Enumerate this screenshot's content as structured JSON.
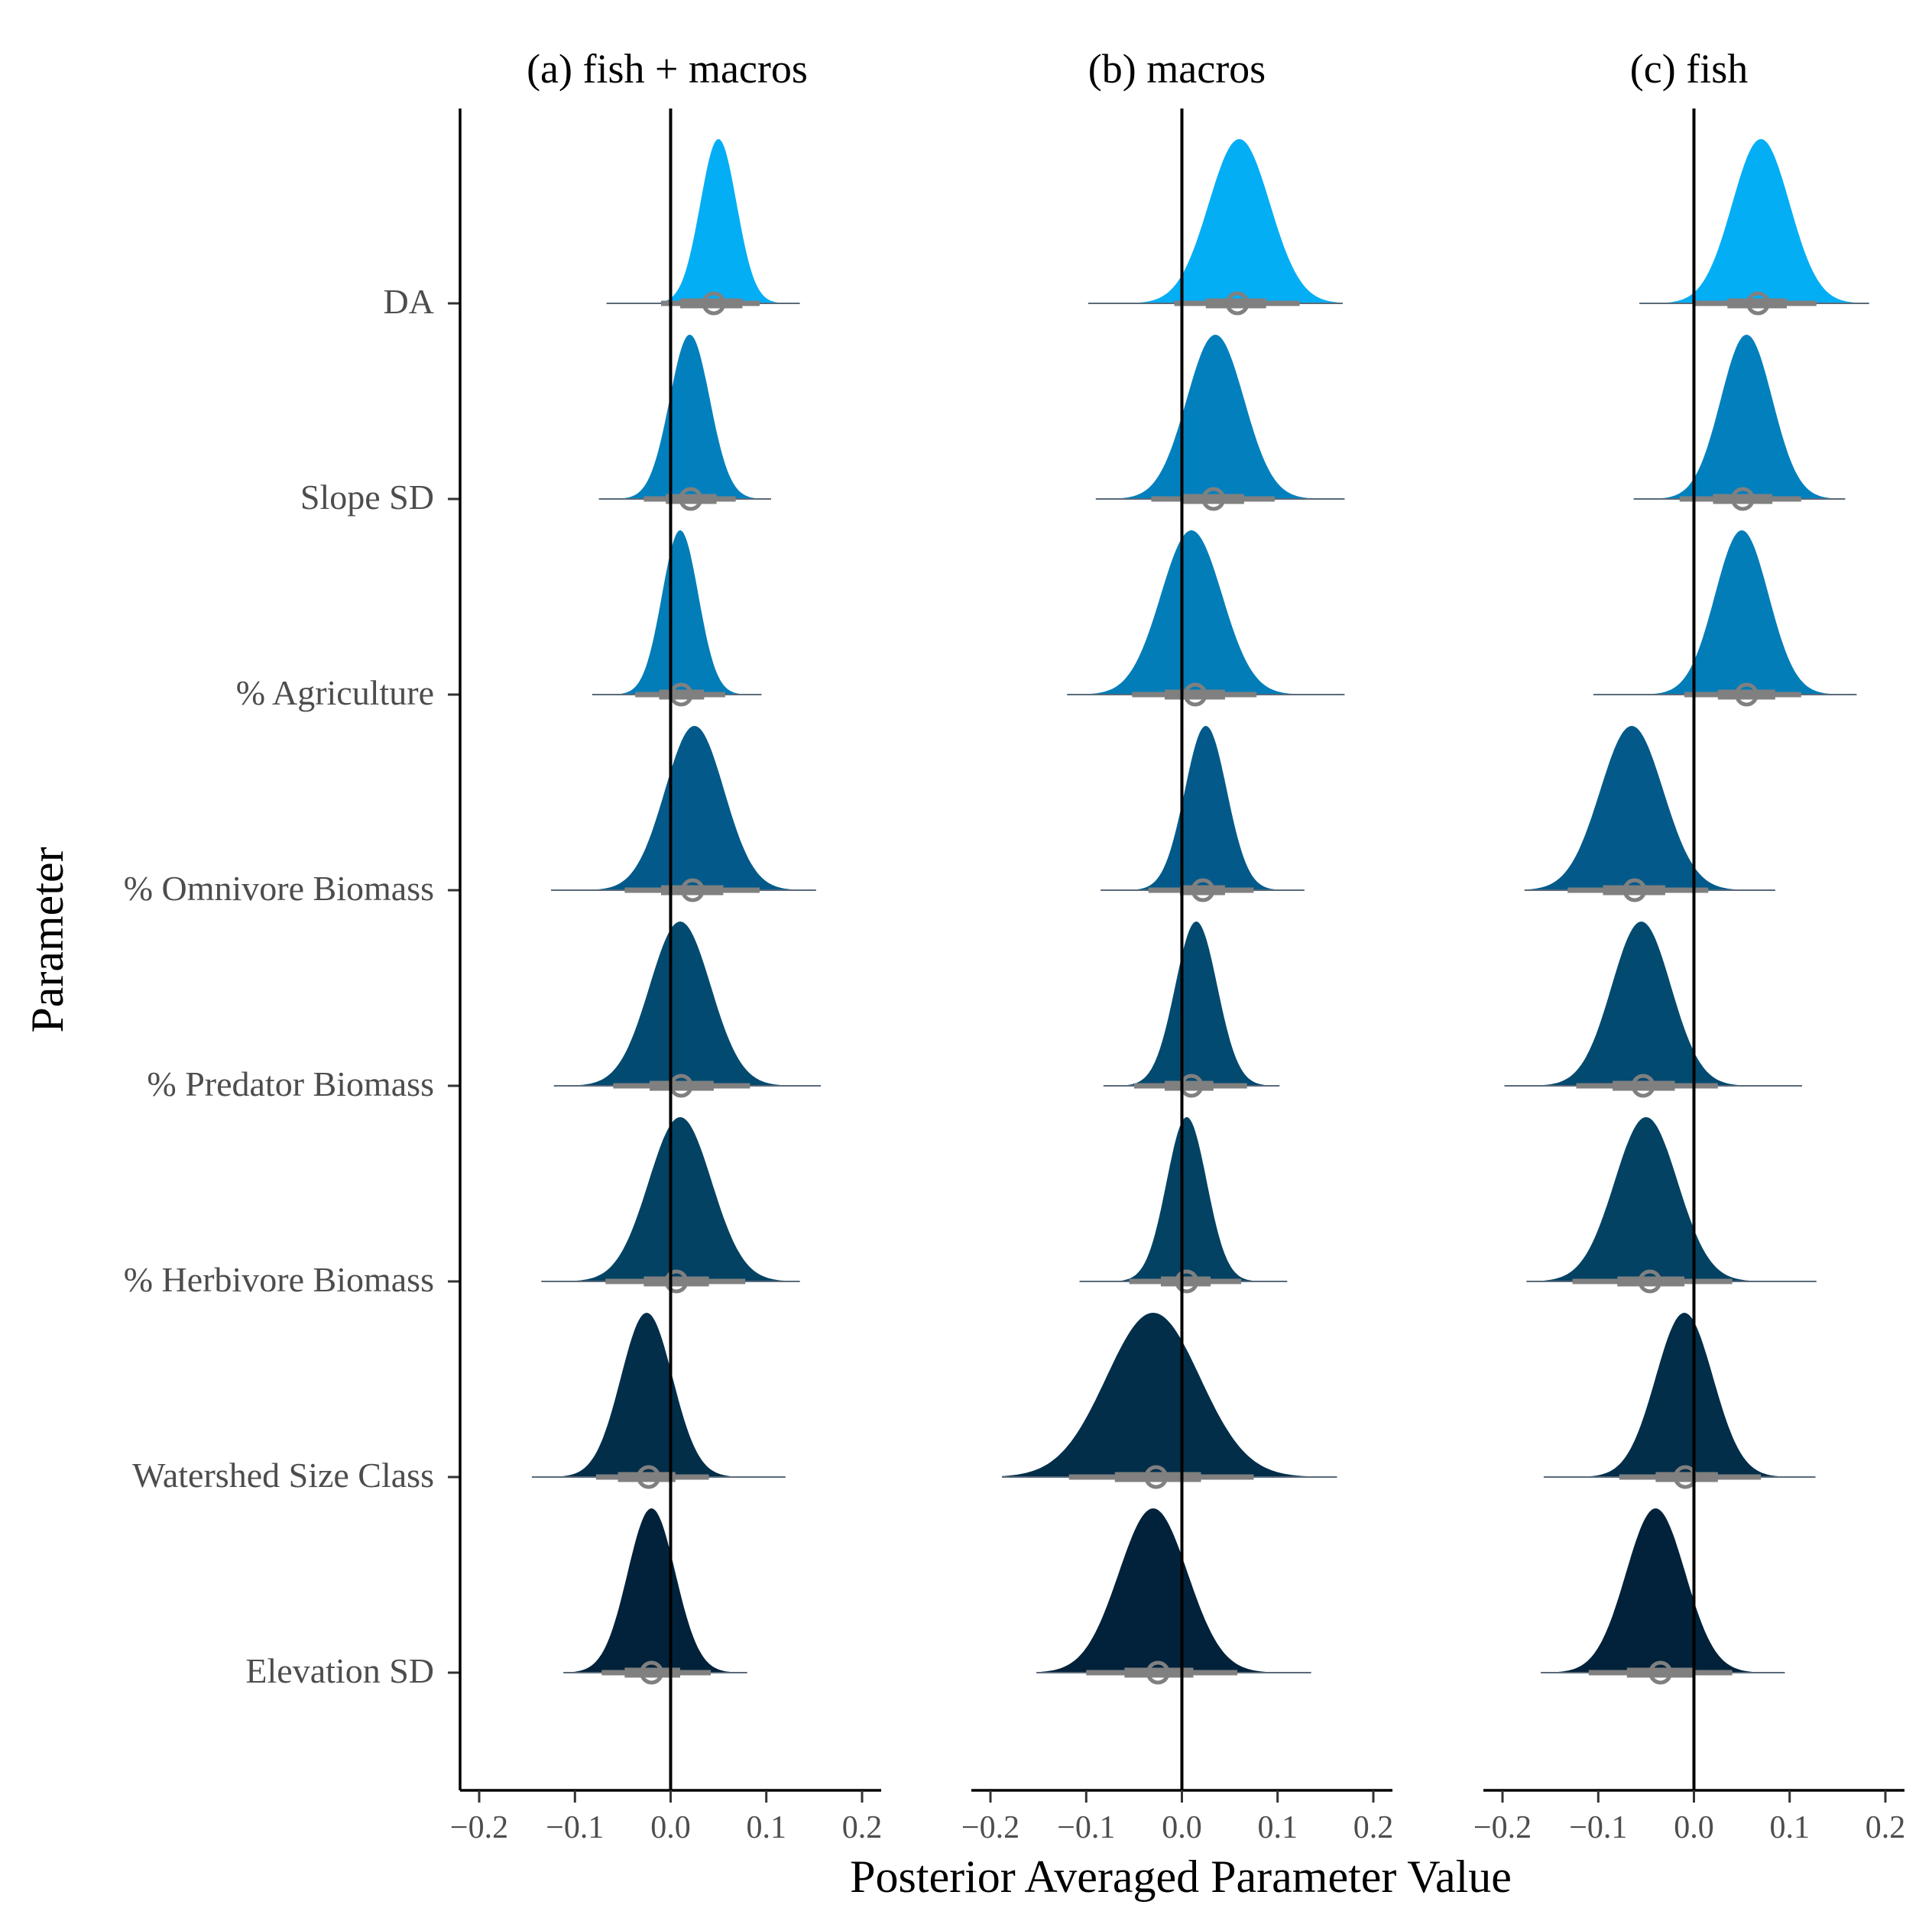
{
  "chart_data": {
    "type": "ridgeline",
    "xlabel": "Posterior Averaged Parameter Value",
    "ylabel": "Parameter",
    "xlim": [
      -0.22,
      0.22
    ],
    "xticks": [
      -0.2,
      -0.1,
      0.0,
      0.1,
      0.2
    ],
    "xtick_labels": [
      "−0.2",
      "−0.1",
      "0.0",
      "0.1",
      "0.2"
    ],
    "reference_line": 0.0,
    "parameters": [
      "DA",
      "Slope SD",
      "% Agriculture",
      "% Omnivore Biomass",
      "% Predator Biomass",
      "% Herbivore Biomass",
      "Watershed Size Class",
      "Elevation SD"
    ],
    "colors": [
      "#03AEF5",
      "#0280BE",
      "#027DB8",
      "#035A8A",
      "#034A70",
      "#034263",
      "#022E4A",
      "#01223A"
    ],
    "interval_color": "#808080",
    "panels": [
      {
        "title": "(a) fish + macros",
        "distributions": [
          {
            "parameter": "DA",
            "median": 0.045,
            "sd": 0.019,
            "peak": 0.05,
            "inner": [
              0.01,
              0.075
            ],
            "outer": [
              -0.01,
              0.093
            ],
            "tails": [
              -0.067,
              0.135
            ]
          },
          {
            "parameter": "Slope SD",
            "median": 0.021,
            "sd": 0.021,
            "peak": 0.02,
            "inner": [
              -0.005,
              0.048
            ],
            "outer": [
              -0.028,
              0.068
            ],
            "tails": [
              -0.075,
              0.105
            ]
          },
          {
            "parameter": "% Agriculture",
            "median": 0.011,
            "sd": 0.019,
            "peak": 0.01,
            "inner": [
              -0.012,
              0.035
            ],
            "outer": [
              -0.037,
              0.057
            ],
            "tails": [
              -0.082,
              0.095
            ]
          },
          {
            "parameter": "% Omnivore Biomass",
            "median": 0.023,
            "sd": 0.031,
            "peak": 0.025,
            "inner": [
              -0.01,
              0.055
            ],
            "outer": [
              -0.048,
              0.093
            ],
            "tails": [
              -0.125,
              0.152
            ]
          },
          {
            "parameter": "% Predator Biomass",
            "median": 0.011,
            "sd": 0.032,
            "peak": 0.01,
            "inner": [
              -0.022,
              0.045
            ],
            "outer": [
              -0.06,
              0.083
            ],
            "tails": [
              -0.122,
              0.157
            ]
          },
          {
            "parameter": "% Herbivore Biomass",
            "median": 0.006,
            "sd": 0.033,
            "peak": 0.01,
            "inner": [
              -0.028,
              0.04
            ],
            "outer": [
              -0.068,
              0.078
            ],
            "tails": [
              -0.135,
              0.135
            ]
          },
          {
            "parameter": "Watershed Size Class",
            "median": -0.023,
            "sd": 0.027,
            "peak": -0.025,
            "inner": [
              -0.055,
              0.005
            ],
            "outer": [
              -0.078,
              0.04
            ],
            "tails": [
              -0.145,
              0.12
            ]
          },
          {
            "parameter": "Elevation SD",
            "median": -0.02,
            "sd": 0.025,
            "peak": -0.02,
            "inner": [
              -0.048,
              0.01
            ],
            "outer": [
              -0.072,
              0.042
            ],
            "tails": [
              -0.112,
              0.08
            ]
          }
        ]
      },
      {
        "title": "(b) macros",
        "distributions": [
          {
            "parameter": "DA",
            "median": 0.058,
            "sd": 0.032,
            "peak": 0.06,
            "inner": [
              0.025,
              0.088
            ],
            "outer": [
              -0.008,
              0.123
            ],
            "tails": [
              -0.098,
              0.168
            ]
          },
          {
            "parameter": "Slope SD",
            "median": 0.033,
            "sd": 0.03,
            "peak": 0.035,
            "inner": [
              0.0,
              0.065
            ],
            "outer": [
              -0.032,
              0.097
            ],
            "tails": [
              -0.09,
              0.17
            ]
          },
          {
            "parameter": "% Agriculture",
            "median": 0.014,
            "sd": 0.032,
            "peak": 0.01,
            "inner": [
              -0.018,
              0.045
            ],
            "outer": [
              -0.052,
              0.078
            ],
            "tails": [
              -0.12,
              0.17
            ]
          },
          {
            "parameter": "% Omnivore Biomass",
            "median": 0.022,
            "sd": 0.022,
            "peak": 0.025,
            "inner": [
              -0.002,
              0.045
            ],
            "outer": [
              -0.035,
              0.075
            ],
            "tails": [
              -0.085,
              0.128
            ]
          },
          {
            "parameter": "% Predator Biomass",
            "median": 0.01,
            "sd": 0.022,
            "peak": 0.015,
            "inner": [
              -0.018,
              0.033
            ],
            "outer": [
              -0.05,
              0.068
            ],
            "tails": [
              -0.082,
              0.102
            ]
          },
          {
            "parameter": "% Herbivore Biomass",
            "median": 0.005,
            "sd": 0.021,
            "peak": 0.005,
            "inner": [
              -0.022,
              0.03
            ],
            "outer": [
              -0.055,
              0.062
            ],
            "tails": [
              -0.107,
              0.11
            ]
          },
          {
            "parameter": "Watershed Size Class",
            "median": -0.027,
            "sd": 0.049,
            "peak": -0.03,
            "inner": [
              -0.07,
              0.02
            ],
            "outer": [
              -0.118,
              0.075
            ],
            "tails": [
              -0.188,
              0.162
            ]
          },
          {
            "parameter": "Elevation SD",
            "median": -0.025,
            "sd": 0.036,
            "peak": -0.03,
            "inner": [
              -0.06,
              0.012
            ],
            "outer": [
              -0.1,
              0.058
            ],
            "tails": [
              -0.152,
              0.135
            ]
          }
        ]
      },
      {
        "title": "(c) fish",
        "distributions": [
          {
            "parameter": "DA",
            "median": 0.067,
            "sd": 0.03,
            "peak": 0.07,
            "inner": [
              0.035,
              0.097
            ],
            "outer": [
              0.0,
              0.128
            ],
            "tails": [
              -0.057,
              0.183
            ]
          },
          {
            "parameter": "Slope SD",
            "median": 0.051,
            "sd": 0.027,
            "peak": 0.055,
            "inner": [
              0.02,
              0.082
            ],
            "outer": [
              -0.015,
              0.112
            ],
            "tails": [
              -0.063,
              0.158
            ]
          },
          {
            "parameter": "% Agriculture",
            "median": 0.055,
            "sd": 0.028,
            "peak": 0.05,
            "inner": [
              0.025,
              0.085
            ],
            "outer": [
              -0.01,
              0.112
            ],
            "tails": [
              -0.105,
              0.17
            ]
          },
          {
            "parameter": "% Omnivore Biomass",
            "median": -0.062,
            "sd": 0.033,
            "peak": -0.065,
            "inner": [
              -0.095,
              -0.03
            ],
            "outer": [
              -0.132,
              0.015
            ],
            "tails": [
              -0.177,
              0.085
            ]
          },
          {
            "parameter": "% Predator Biomass",
            "median": -0.053,
            "sd": 0.031,
            "peak": -0.055,
            "inner": [
              -0.085,
              -0.02
            ],
            "outer": [
              -0.123,
              0.025
            ],
            "tails": [
              -0.198,
              0.113
            ]
          },
          {
            "parameter": "% Herbivore Biomass",
            "median": -0.046,
            "sd": 0.033,
            "peak": -0.05,
            "inner": [
              -0.08,
              -0.01
            ],
            "outer": [
              -0.127,
              0.04
            ],
            "tails": [
              -0.175,
              0.128
            ]
          },
          {
            "parameter": "Watershed Size Class",
            "median": -0.009,
            "sd": 0.03,
            "peak": -0.01,
            "inner": [
              -0.04,
              0.025
            ],
            "outer": [
              -0.078,
              0.07
            ],
            "tails": [
              -0.157,
              0.127
            ]
          },
          {
            "parameter": "Elevation SD",
            "median": -0.035,
            "sd": 0.031,
            "peak": -0.04,
            "inner": [
              -0.07,
              0.0
            ],
            "outer": [
              -0.11,
              0.04
            ],
            "tails": [
              -0.16,
              0.095
            ]
          }
        ]
      }
    ]
  }
}
